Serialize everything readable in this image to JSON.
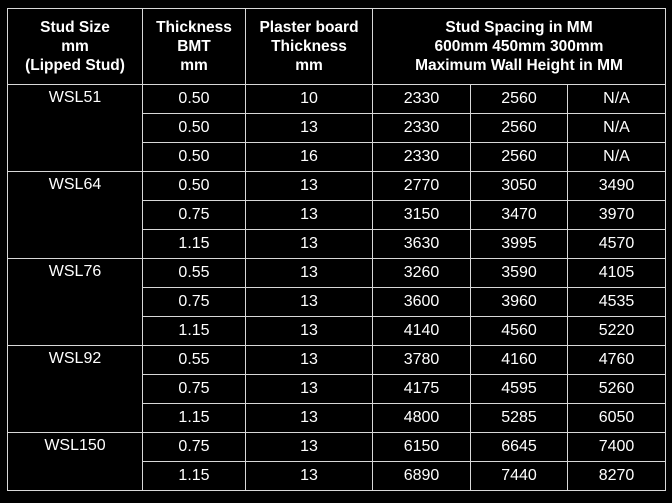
{
  "table": {
    "headers": {
      "stud_size": [
        "Stud Size",
        "mm",
        "(Lipped Stud)"
      ],
      "thickness": [
        "Thickness",
        "BMT",
        "mm"
      ],
      "plaster": [
        "Plaster board",
        "Thickness",
        "mm"
      ],
      "spacing": [
        "Stud Spacing in MM",
        "600mm 450mm 300mm",
        "Maximum Wall Height in MM"
      ]
    },
    "rows": [
      {
        "size": "WSL51",
        "bmt": "0.50",
        "board": "10",
        "s600": "2330",
        "s450": "2560",
        "s300": "N/A"
      },
      {
        "size": "",
        "bmt": "0.50",
        "board": "13",
        "s600": "2330",
        "s450": "2560",
        "s300": "N/A"
      },
      {
        "size": "",
        "bmt": "0.50",
        "board": "16",
        "s600": "2330",
        "s450": "2560",
        "s300": "N/A"
      },
      {
        "size": "WSL64",
        "bmt": "0.50",
        "board": "13",
        "s600": "2770",
        "s450": "3050",
        "s300": "3490"
      },
      {
        "size": "",
        "bmt": "0.75",
        "board": "13",
        "s600": "3150",
        "s450": "3470",
        "s300": "3970"
      },
      {
        "size": "",
        "bmt": "1.15",
        "board": "13",
        "s600": "3630",
        "s450": "3995",
        "s300": "4570"
      },
      {
        "size": "WSL76",
        "bmt": "0.55",
        "board": "13",
        "s600": "3260",
        "s450": "3590",
        "s300": "4105"
      },
      {
        "size": "",
        "bmt": "0.75",
        "board": "13",
        "s600": "3600",
        "s450": "3960",
        "s300": "4535"
      },
      {
        "size": "",
        "bmt": "1.15",
        "board": "13",
        "s600": "4140",
        "s450": "4560",
        "s300": "5220"
      },
      {
        "size": "WSL92",
        "bmt": "0.55",
        "board": "13",
        "s600": "3780",
        "s450": "4160",
        "s300": "4760"
      },
      {
        "size": "",
        "bmt": "0.75",
        "board": "13",
        "s600": "4175",
        "s450": "4595",
        "s300": "5260"
      },
      {
        "size": "",
        "bmt": "1.15",
        "board": "13",
        "s600": "4800",
        "s450": "5285",
        "s300": "6050"
      },
      {
        "size": "WSL150",
        "bmt": "0.75",
        "board": "13",
        "s600": "6150",
        "s450": "6645",
        "s300": "7400"
      },
      {
        "size": "",
        "bmt": "1.15",
        "board": "13",
        "s600": "6890",
        "s450": "7440",
        "s300": "8270"
      }
    ]
  }
}
